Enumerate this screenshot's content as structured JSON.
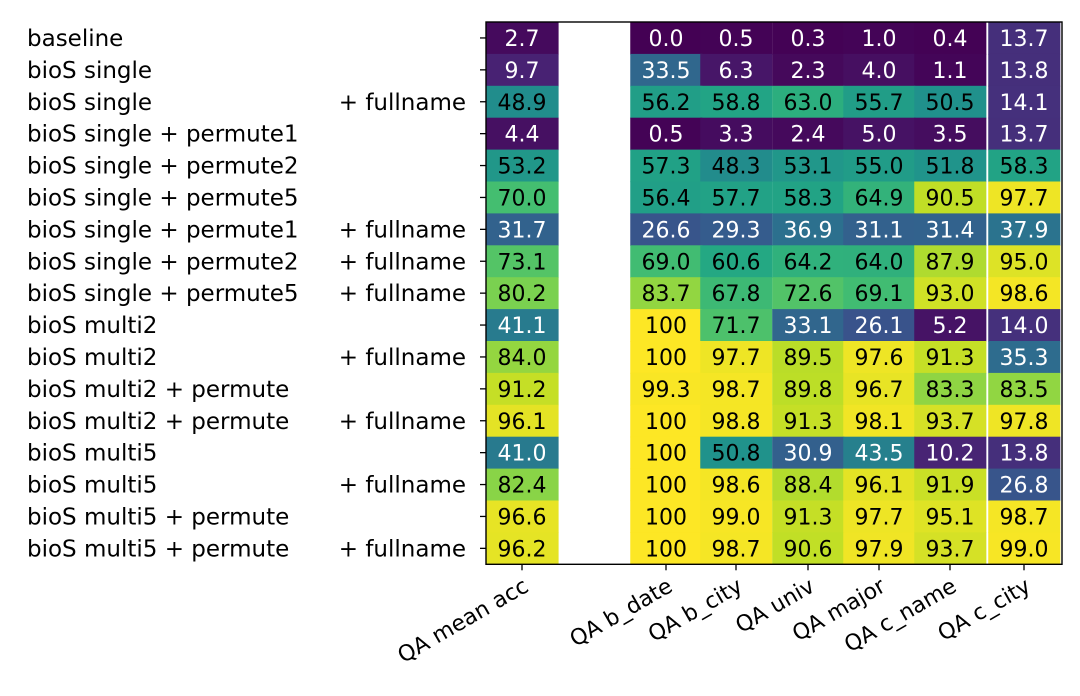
{
  "chart_data": {
    "type": "heatmap",
    "colormap": "viridis",
    "vmin": 0,
    "vmax": 100,
    "rows": [
      {
        "name": "baseline",
        "suffix": ""
      },
      {
        "name": "bioS single",
        "suffix": ""
      },
      {
        "name": "bioS single",
        "suffix": "+ fullname"
      },
      {
        "name": "bioS single + permute1",
        "suffix": ""
      },
      {
        "name": "bioS single + permute2",
        "suffix": ""
      },
      {
        "name": "bioS single + permute5",
        "suffix": ""
      },
      {
        "name": "bioS single + permute1",
        "suffix": "+ fullname"
      },
      {
        "name": "bioS single + permute2",
        "suffix": "+ fullname"
      },
      {
        "name": "bioS single + permute5",
        "suffix": "+ fullname"
      },
      {
        "name": "bioS multi2",
        "suffix": ""
      },
      {
        "name": "bioS multi2",
        "suffix": "+ fullname"
      },
      {
        "name": "bioS multi2 + permute",
        "suffix": ""
      },
      {
        "name": "bioS multi2 + permute",
        "suffix": "+ fullname"
      },
      {
        "name": "bioS multi5",
        "suffix": ""
      },
      {
        "name": "bioS multi5",
        "suffix": "+ fullname"
      },
      {
        "name": "bioS multi5 + permute",
        "suffix": ""
      },
      {
        "name": "bioS multi5 + permute",
        "suffix": "+ fullname"
      }
    ],
    "columns": [
      "QA mean acc",
      "QA b_date",
      "QA b_city",
      "QA univ",
      "QA major",
      "QA c_name",
      "QA c_city"
    ],
    "values": [
      [
        "2.7",
        "0.0",
        "0.5",
        "0.3",
        "1.0",
        "0.4",
        "13.7"
      ],
      [
        "9.7",
        "33.5",
        "6.3",
        "2.3",
        "4.0",
        "1.1",
        "13.8"
      ],
      [
        "48.9",
        "56.2",
        "58.8",
        "63.0",
        "55.7",
        "50.5",
        "14.1"
      ],
      [
        "4.4",
        "0.5",
        "3.3",
        "2.4",
        "5.0",
        "3.5",
        "13.7"
      ],
      [
        "53.2",
        "57.3",
        "48.3",
        "53.1",
        "55.0",
        "51.8",
        "58.3"
      ],
      [
        "70.0",
        "56.4",
        "57.7",
        "58.3",
        "64.9",
        "90.5",
        "97.7"
      ],
      [
        "31.7",
        "26.6",
        "29.3",
        "36.9",
        "31.1",
        "31.4",
        "37.9"
      ],
      [
        "73.1",
        "69.0",
        "60.6",
        "64.2",
        "64.0",
        "87.9",
        "95.0"
      ],
      [
        "80.2",
        "83.7",
        "67.8",
        "72.6",
        "69.1",
        "93.0",
        "98.6"
      ],
      [
        "41.1",
        "100",
        "71.7",
        "33.1",
        "26.1",
        "5.2",
        "14.0"
      ],
      [
        "84.0",
        "100",
        "97.7",
        "89.5",
        "97.6",
        "91.3",
        "35.3"
      ],
      [
        "91.2",
        "99.3",
        "98.7",
        "89.8",
        "96.7",
        "83.3",
        "83.5"
      ],
      [
        "96.1",
        "100",
        "98.8",
        "91.3",
        "98.1",
        "93.7",
        "97.8"
      ],
      [
        "41.0",
        "100",
        "50.8",
        "30.9",
        "43.5",
        "10.2",
        "13.8"
      ],
      [
        "82.4",
        "100",
        "98.6",
        "88.4",
        "96.1",
        "91.9",
        "26.8"
      ],
      [
        "96.6",
        "100",
        "99.0",
        "91.3",
        "97.7",
        "95.1",
        "98.7"
      ],
      [
        "96.2",
        "100",
        "98.7",
        "90.6",
        "97.9",
        "93.7",
        "99.0"
      ]
    ],
    "grid": false,
    "legend": "none"
  }
}
